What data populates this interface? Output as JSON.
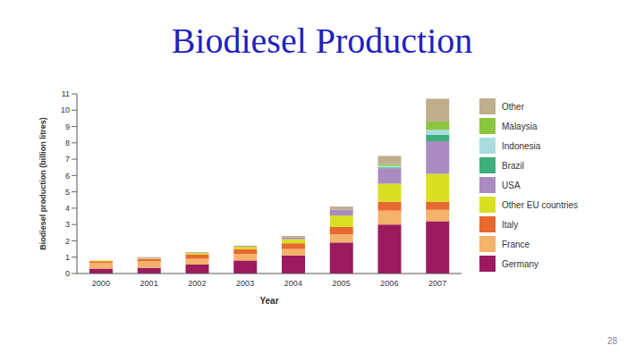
{
  "chart_data": {
    "type": "bar",
    "title": "Biodiesel Production",
    "x_label": "Year",
    "y_label": "Biodiesel production (billion litres)",
    "categories": [
      "2000",
      "2001",
      "2002",
      "2003",
      "2004",
      "2005",
      "2006",
      "2007"
    ],
    "series": [
      {
        "name": "Germany",
        "color": "#9c1a5e",
        "values": [
          0.3,
          0.35,
          0.55,
          0.8,
          1.1,
          1.9,
          3.0,
          3.2
        ]
      },
      {
        "name": "France",
        "color": "#f4b26a",
        "values": [
          0.35,
          0.4,
          0.35,
          0.4,
          0.4,
          0.5,
          0.85,
          0.7
        ]
      },
      {
        "name": "Italy",
        "color": "#e8692d",
        "values": [
          0.1,
          0.15,
          0.25,
          0.3,
          0.35,
          0.45,
          0.55,
          0.5
        ]
      },
      {
        "name": "Other EU countries",
        "color": "#d9e021",
        "values": [
          0.05,
          0.05,
          0.1,
          0.15,
          0.25,
          0.7,
          1.1,
          1.7
        ]
      },
      {
        "name": "USA",
        "color": "#a98bbf",
        "values": [
          0,
          0.05,
          0.05,
          0.05,
          0.1,
          0.35,
          0.95,
          2.0
        ]
      },
      {
        "name": "Brazil",
        "color": "#3daf7a",
        "values": [
          0,
          0,
          0,
          0,
          0,
          0,
          0.05,
          0.4
        ]
      },
      {
        "name": "Indonesia",
        "color": "#a8dce0",
        "values": [
          0,
          0,
          0,
          0,
          0,
          0,
          0.1,
          0.3
        ]
      },
      {
        "name": "Malaysia",
        "color": "#8bc43f",
        "values": [
          0,
          0,
          0,
          0,
          0,
          0,
          0.1,
          0.5
        ]
      },
      {
        "name": "Other",
        "color": "#bfae8c",
        "values": [
          0,
          0,
          0,
          0,
          0.1,
          0.2,
          0.5,
          1.4
        ]
      }
    ],
    "ylim": [
      0,
      11
    ],
    "yticks": [
      0,
      1,
      2,
      3,
      4,
      5,
      6,
      7,
      8,
      9,
      10,
      11
    ],
    "stacked": true,
    "grid": false,
    "legend": "right"
  },
  "page_number": 28
}
